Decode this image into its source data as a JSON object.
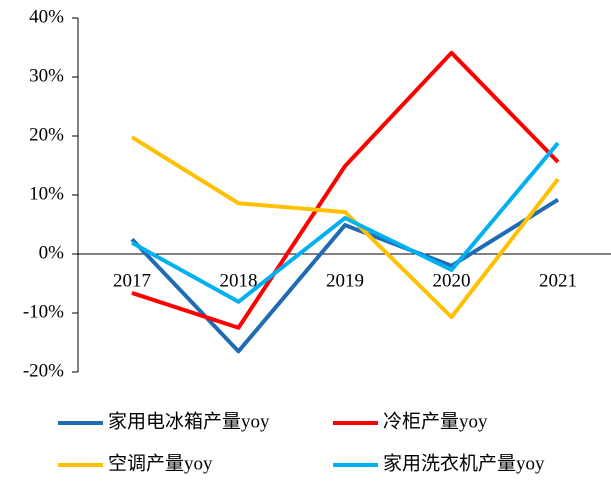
{
  "chart_data": {
    "type": "line",
    "categories": [
      "2017",
      "2018",
      "2019",
      "2020",
      "2021"
    ],
    "series": [
      {
        "name": "家用电冰箱产量yoy",
        "color": "#1f6bb5",
        "values": [
          2.5,
          -16.5,
          4.9,
          -2.0,
          9.2
        ]
      },
      {
        "name": "冷柜产量yoy",
        "color": "#ff0000",
        "values": [
          -6.6,
          -12.5,
          14.9,
          34.1,
          15.6
        ]
      },
      {
        "name": "空调产量yoy",
        "color": "#ffc000",
        "values": [
          19.8,
          8.6,
          7.1,
          -10.7,
          12.7
        ]
      },
      {
        "name": "家用洗衣机产量yoy",
        "color": "#00b0f0",
        "values": [
          1.9,
          -8.1,
          6.1,
          -2.7,
          18.8
        ]
      }
    ],
    "ylim": [
      -20,
      40
    ],
    "yticks": [
      {
        "value": -20,
        "label": "-20%"
      },
      {
        "value": -10,
        "label": "-10%"
      },
      {
        "value": 0,
        "label": "0%"
      },
      {
        "value": 10,
        "label": "10%"
      },
      {
        "value": 20,
        "label": "20%"
      },
      {
        "value": 30,
        "label": "30%"
      },
      {
        "value": 40,
        "label": "40%"
      }
    ],
    "grid": false,
    "legend": "bottom"
  }
}
